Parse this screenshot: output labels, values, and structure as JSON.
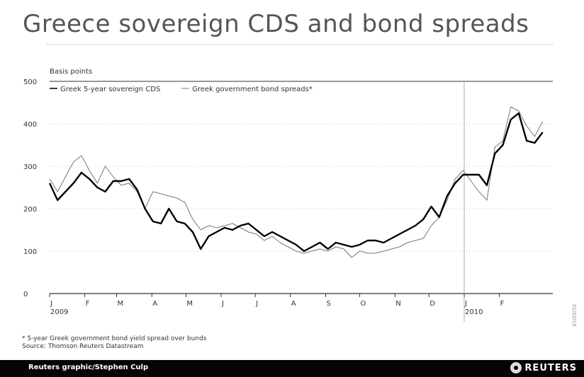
{
  "chart_data": {
    "type": "line",
    "title": "Greece sovereign CDS and bond spreads",
    "ylabel": "Basis points",
    "ylim": [
      0,
      500
    ],
    "yticks": [
      0,
      100,
      200,
      300,
      400,
      500
    ],
    "grid": true,
    "legend_position": "top-left",
    "x_ticks": [
      {
        "label": "J",
        "sub": "2009"
      },
      {
        "label": "F",
        "sub": ""
      },
      {
        "label": "M",
        "sub": ""
      },
      {
        "label": "A",
        "sub": ""
      },
      {
        "label": "M",
        "sub": ""
      },
      {
        "label": "J",
        "sub": ""
      },
      {
        "label": "J",
        "sub": ""
      },
      {
        "label": "A",
        "sub": ""
      },
      {
        "label": "S",
        "sub": ""
      },
      {
        "label": "O",
        "sub": ""
      },
      {
        "label": "N",
        "sub": ""
      },
      {
        "label": "D",
        "sub": ""
      },
      {
        "label": "J",
        "sub": "2010"
      },
      {
        "label": "F",
        "sub": ""
      }
    ],
    "x_marker": "2010-01-01",
    "series": [
      {
        "name": "Greek 5-year sovereign CDS",
        "color": "#000000",
        "values": [
          [
            "2009-01-01",
            260
          ],
          [
            "2009-01-08",
            220
          ],
          [
            "2009-01-15",
            240
          ],
          [
            "2009-01-22",
            260
          ],
          [
            "2009-01-29",
            285
          ],
          [
            "2009-02-05",
            270
          ],
          [
            "2009-02-12",
            250
          ],
          [
            "2009-02-19",
            240
          ],
          [
            "2009-02-26",
            265
          ],
          [
            "2009-03-05",
            265
          ],
          [
            "2009-03-12",
            270
          ],
          [
            "2009-03-19",
            245
          ],
          [
            "2009-03-26",
            200
          ],
          [
            "2009-04-02",
            170
          ],
          [
            "2009-04-09",
            165
          ],
          [
            "2009-04-16",
            200
          ],
          [
            "2009-04-23",
            170
          ],
          [
            "2009-04-30",
            165
          ],
          [
            "2009-05-07",
            145
          ],
          [
            "2009-05-14",
            105
          ],
          [
            "2009-05-21",
            135
          ],
          [
            "2009-05-28",
            145
          ],
          [
            "2009-06-04",
            155
          ],
          [
            "2009-06-11",
            150
          ],
          [
            "2009-06-18",
            160
          ],
          [
            "2009-06-25",
            165
          ],
          [
            "2009-07-02",
            150
          ],
          [
            "2009-07-09",
            135
          ],
          [
            "2009-07-16",
            145
          ],
          [
            "2009-07-23",
            135
          ],
          [
            "2009-07-30",
            125
          ],
          [
            "2009-08-06",
            115
          ],
          [
            "2009-08-13",
            100
          ],
          [
            "2009-08-20",
            110
          ],
          [
            "2009-08-27",
            120
          ],
          [
            "2009-09-03",
            105
          ],
          [
            "2009-09-10",
            120
          ],
          [
            "2009-09-17",
            115
          ],
          [
            "2009-09-24",
            110
          ],
          [
            "2009-10-01",
            115
          ],
          [
            "2009-10-08",
            125
          ],
          [
            "2009-10-15",
            125
          ],
          [
            "2009-10-22",
            120
          ],
          [
            "2009-10-29",
            130
          ],
          [
            "2009-11-05",
            140
          ],
          [
            "2009-11-12",
            150
          ],
          [
            "2009-11-19",
            160
          ],
          [
            "2009-11-26",
            175
          ],
          [
            "2009-12-03",
            205
          ],
          [
            "2009-12-10",
            180
          ],
          [
            "2009-12-17",
            230
          ],
          [
            "2009-12-24",
            260
          ],
          [
            "2009-12-31",
            280
          ],
          [
            "2010-01-07",
            280
          ],
          [
            "2010-01-14",
            280
          ],
          [
            "2010-01-21",
            255
          ],
          [
            "2010-01-28",
            330
          ],
          [
            "2010-02-04",
            350
          ],
          [
            "2010-02-11",
            410
          ],
          [
            "2010-02-18",
            425
          ],
          [
            "2010-02-25",
            360
          ],
          [
            "2010-03-04",
            355
          ],
          [
            "2010-03-11",
            380
          ]
        ]
      },
      {
        "name": "Greek government bond spreads*",
        "color": "#777777",
        "values": [
          [
            "2009-01-01",
            270
          ],
          [
            "2009-01-08",
            240
          ],
          [
            "2009-01-15",
            275
          ],
          [
            "2009-01-22",
            310
          ],
          [
            "2009-01-29",
            325
          ],
          [
            "2009-02-05",
            290
          ],
          [
            "2009-02-12",
            260
          ],
          [
            "2009-02-19",
            300
          ],
          [
            "2009-02-26",
            275
          ],
          [
            "2009-03-05",
            255
          ],
          [
            "2009-03-12",
            260
          ],
          [
            "2009-03-19",
            240
          ],
          [
            "2009-03-26",
            200
          ],
          [
            "2009-04-02",
            240
          ],
          [
            "2009-04-09",
            235
          ],
          [
            "2009-04-16",
            230
          ],
          [
            "2009-04-23",
            225
          ],
          [
            "2009-04-30",
            215
          ],
          [
            "2009-05-07",
            175
          ],
          [
            "2009-05-14",
            150
          ],
          [
            "2009-05-21",
            160
          ],
          [
            "2009-05-28",
            155
          ],
          [
            "2009-06-04",
            160
          ],
          [
            "2009-06-11",
            165
          ],
          [
            "2009-06-18",
            155
          ],
          [
            "2009-06-25",
            145
          ],
          [
            "2009-07-02",
            140
          ],
          [
            "2009-07-09",
            125
          ],
          [
            "2009-07-16",
            135
          ],
          [
            "2009-07-23",
            120
          ],
          [
            "2009-07-30",
            110
          ],
          [
            "2009-08-06",
            100
          ],
          [
            "2009-08-13",
            95
          ],
          [
            "2009-08-20",
            100
          ],
          [
            "2009-08-27",
            105
          ],
          [
            "2009-09-03",
            100
          ],
          [
            "2009-09-10",
            110
          ],
          [
            "2009-09-17",
            105
          ],
          [
            "2009-09-24",
            85
          ],
          [
            "2009-10-01",
            100
          ],
          [
            "2009-10-08",
            95
          ],
          [
            "2009-10-15",
            95
          ],
          [
            "2009-10-22",
            100
          ],
          [
            "2009-10-29",
            105
          ],
          [
            "2009-11-05",
            110
          ],
          [
            "2009-11-12",
            120
          ],
          [
            "2009-11-19",
            125
          ],
          [
            "2009-11-26",
            130
          ],
          [
            "2009-12-03",
            160
          ],
          [
            "2009-12-10",
            180
          ],
          [
            "2009-12-17",
            220
          ],
          [
            "2009-12-24",
            270
          ],
          [
            "2009-12-31",
            290
          ],
          [
            "2010-01-07",
            265
          ],
          [
            "2010-01-14",
            240
          ],
          [
            "2010-01-21",
            220
          ],
          [
            "2010-01-28",
            345
          ],
          [
            "2010-02-04",
            360
          ],
          [
            "2010-02-11",
            440
          ],
          [
            "2010-02-18",
            430
          ],
          [
            "2010-02-25",
            395
          ],
          [
            "2010-03-04",
            370
          ],
          [
            "2010-03-11",
            405
          ]
        ]
      }
    ]
  },
  "footnote": "* 5-year Greek government bond yield spread over bunds",
  "source": "Source: Thomson Reuters Datastream",
  "credit": "Reuters graphic/Stephen Culp",
  "brand": "REUTERS",
  "side_code": "01/02/10"
}
